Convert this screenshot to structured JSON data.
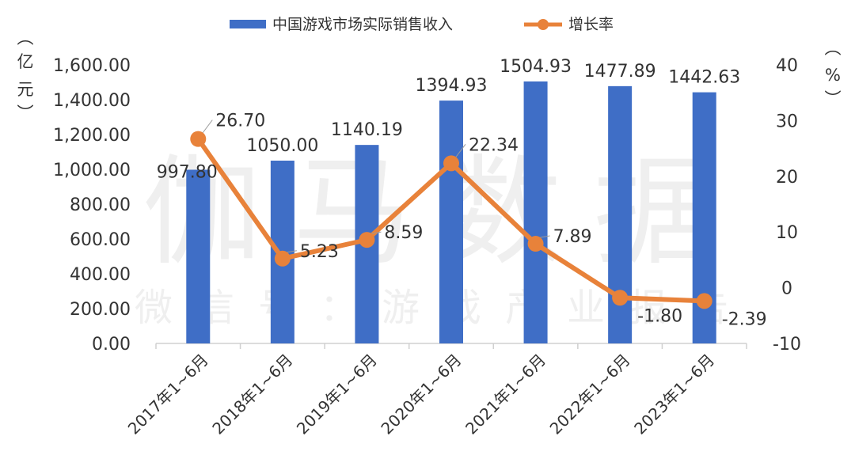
{
  "chart_data": {
    "type": "bar+line",
    "categories": [
      "2017年1~6月",
      "2018年1~6月",
      "2019年1~6月",
      "2020年1~6月",
      "2021年1~6月",
      "2022年1~6月",
      "2023年1~6月"
    ],
    "series": [
      {
        "name": "中国游戏市场实际销售收入",
        "type": "bar",
        "axis": "left",
        "values": [
          997.8,
          1050.0,
          1140.19,
          1394.93,
          1504.93,
          1477.89,
          1442.63
        ],
        "labels": [
          "997.80",
          "1050.00",
          "1140.19",
          "1394.93",
          "1504.93",
          "1477.89",
          "1442.63"
        ],
        "color": "#3F6EC6"
      },
      {
        "name": "增长率",
        "type": "line",
        "axis": "right",
        "values": [
          26.7,
          5.23,
          8.59,
          22.34,
          7.89,
          -1.8,
          -2.39
        ],
        "labels": [
          "26.70",
          "5.23",
          "8.59",
          "22.34",
          "7.89",
          "-1.80",
          "-2.39"
        ],
        "color": "#E8823A"
      }
    ],
    "left_axis": {
      "label": "（亿元）",
      "label_chars": [
        "︵",
        "亿",
        "元",
        "︶"
      ],
      "ylim": [
        0,
        1600
      ],
      "ticks": [
        "0.00",
        "200.00",
        "400.00",
        "600.00",
        "800.00",
        "1,000.00",
        "1,200.00",
        "1,400.00",
        "1,600.00"
      ]
    },
    "right_axis": {
      "label": "（%）",
      "label_chars": [
        "︵",
        "%",
        "︶"
      ],
      "ylim": [
        -10,
        40
      ],
      "ticks": [
        "-10",
        "0",
        "10",
        "20",
        "30",
        "40"
      ]
    },
    "legend": "top",
    "grid": false,
    "watermark": {
      "main": "伽马数据",
      "sub": "微信号：游戏产业报告"
    }
  }
}
